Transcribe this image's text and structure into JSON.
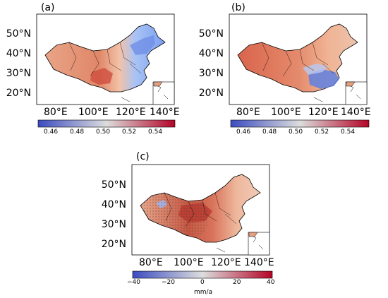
{
  "panels": [
    {
      "label": "(a)",
      "lat_labels": [
        "50°N",
        "40°N",
        "30°N",
        "20°N"
      ],
      "lon_labels": [
        "80°E",
        "100°E",
        "120°E",
        "140°E"
      ],
      "colorbar": {
        "ticks": [
          "0.46",
          "0.48",
          "0.50",
          "0.52",
          "0.54"
        ],
        "range": [
          0.45,
          0.555
        ],
        "colormap": "coolwarm",
        "unit": ""
      }
    },
    {
      "label": "(b)",
      "lat_labels": [
        "50°N",
        "40°N",
        "30°N",
        "20°N"
      ],
      "lon_labels": [
        "80°E",
        "100°E",
        "120°E",
        "140°E"
      ],
      "colorbar": {
        "ticks": [
          "0.46",
          "0.48",
          "0.50",
          "0.52",
          "0.54"
        ],
        "range": [
          0.45,
          0.555
        ],
        "colormap": "coolwarm",
        "unit": ""
      }
    },
    {
      "label": "(c)",
      "lat_labels": [
        "50°N",
        "40°N",
        "30°N",
        "20°N"
      ],
      "lon_labels": [
        "80°E",
        "100°E",
        "120°E",
        "140°E"
      ],
      "colorbar": {
        "ticks": [
          "−40",
          "−20",
          "0",
          "20",
          "40"
        ],
        "range": [
          -40,
          40
        ],
        "colormap": "coolwarm",
        "unit": "mm/a"
      }
    }
  ],
  "colors": {
    "cool": "#3b4cc0",
    "neutral": "#dddddd",
    "warm": "#b40426",
    "land_outline": "#000000",
    "hatch": "#333333"
  }
}
